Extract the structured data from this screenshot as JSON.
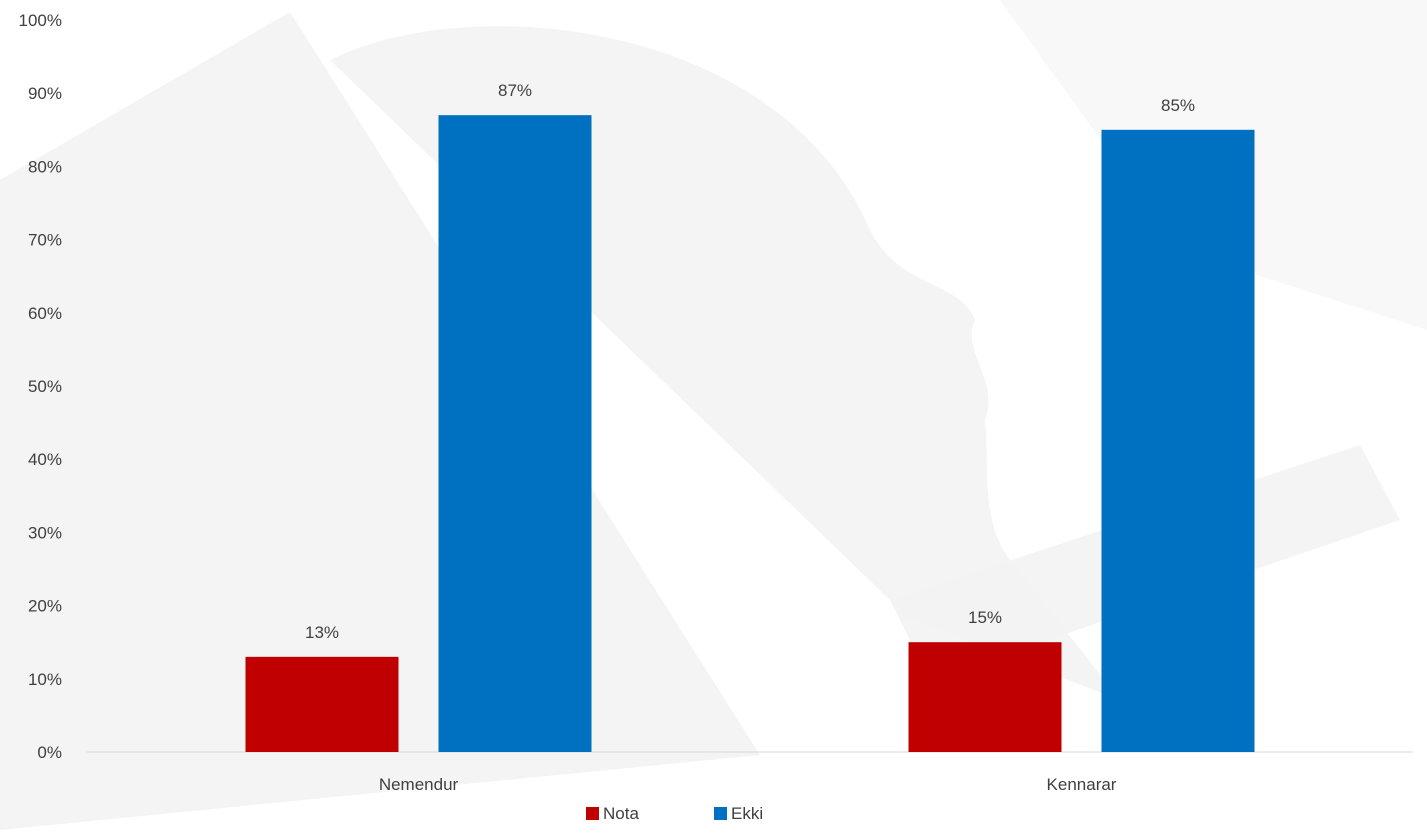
{
  "chart_data": {
    "type": "bar",
    "title": "",
    "xlabel": "",
    "ylabel": "",
    "categories": [
      "Nemendur",
      "Kennarar"
    ],
    "series": [
      {
        "name": "Nota",
        "color": "#C00000",
        "values": [
          13,
          15
        ],
        "labels": [
          "13%",
          "15%"
        ]
      },
      {
        "name": "Ekki",
        "color": "#0070C0",
        "values": [
          87,
          85
        ],
        "labels": [
          "87%",
          "85%"
        ]
      }
    ],
    "ylim": [
      0,
      100
    ],
    "yticks": [
      0,
      10,
      20,
      30,
      40,
      50,
      60,
      70,
      80,
      90,
      100
    ],
    "ytick_labels": [
      "0%",
      "10%",
      "20%",
      "30%",
      "40%",
      "50%",
      "60%",
      "70%",
      "80%",
      "90%",
      "100%"
    ],
    "grid": false,
    "legend": {
      "position": "bottom"
    },
    "colors": {
      "axis": "#D9D9D9",
      "text": "#404040",
      "watermark": "#F2F2F2"
    }
  }
}
